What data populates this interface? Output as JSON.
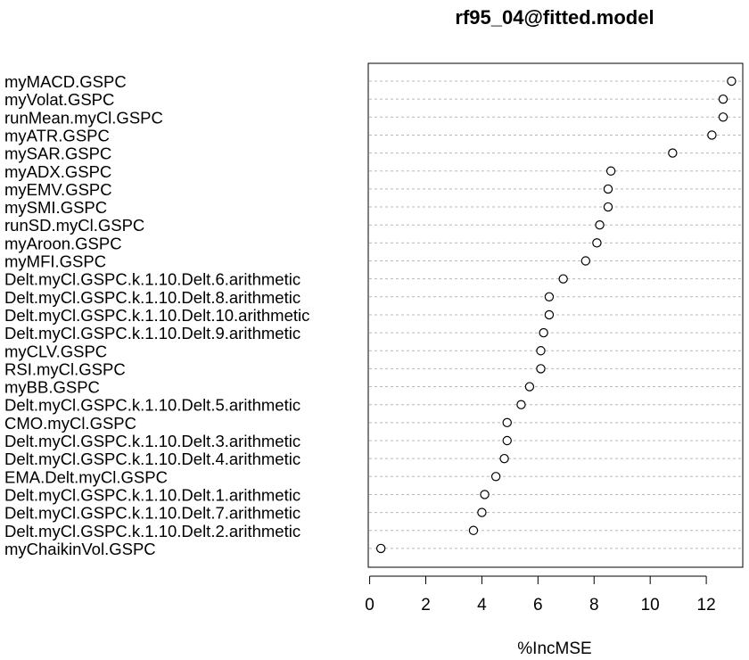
{
  "chart_data": {
    "type": "scatter",
    "title": "rf95_04@fitted.model",
    "xlabel": "%IncMSE",
    "ylabel": "",
    "xlim": [
      -0.05,
      13.3
    ],
    "xticks": [
      "0",
      "2",
      "4",
      "6",
      "8",
      "10",
      "12"
    ],
    "grid": "dotted horizontal guide per variable",
    "marker": "open circle",
    "categories": [
      "myMACD.GSPC",
      "myVolat.GSPC",
      "runMean.myCl.GSPC",
      "myATR.GSPC",
      "mySAR.GSPC",
      "myADX.GSPC",
      "myEMV.GSPC",
      "mySMI.GSPC",
      "runSD.myCl.GSPC",
      "myAroon.GSPC",
      "myMFI.GSPC",
      "Delt.myCl.GSPC.k.1.10.Delt.6.arithmetic",
      "Delt.myCl.GSPC.k.1.10.Delt.8.arithmetic",
      "Delt.myCl.GSPC.k.1.10.Delt.10.arithmetic",
      "Delt.myCl.GSPC.k.1.10.Delt.9.arithmetic",
      "myCLV.GSPC",
      "RSI.myCl.GSPC",
      "myBB.GSPC",
      "Delt.myCl.GSPC.k.1.10.Delt.5.arithmetic",
      "CMO.myCl.GSPC",
      "Delt.myCl.GSPC.k.1.10.Delt.3.arithmetic",
      "Delt.myCl.GSPC.k.1.10.Delt.4.arithmetic",
      "EMA.Delt.myCl.GSPC",
      "Delt.myCl.GSPC.k.1.10.Delt.1.arithmetic",
      "Delt.myCl.GSPC.k.1.10.Delt.7.arithmetic",
      "Delt.myCl.GSPC.k.1.10.Delt.2.arithmetic",
      "myChaikinVol.GSPC"
    ],
    "values": [
      12.9,
      12.6,
      12.6,
      12.2,
      10.8,
      8.6,
      8.5,
      8.5,
      8.2,
      8.1,
      7.7,
      6.9,
      6.4,
      6.4,
      6.2,
      6.1,
      6.1,
      5.7,
      5.4,
      4.9,
      4.9,
      4.8,
      4.5,
      4.1,
      4.0,
      3.7,
      0.4
    ]
  }
}
